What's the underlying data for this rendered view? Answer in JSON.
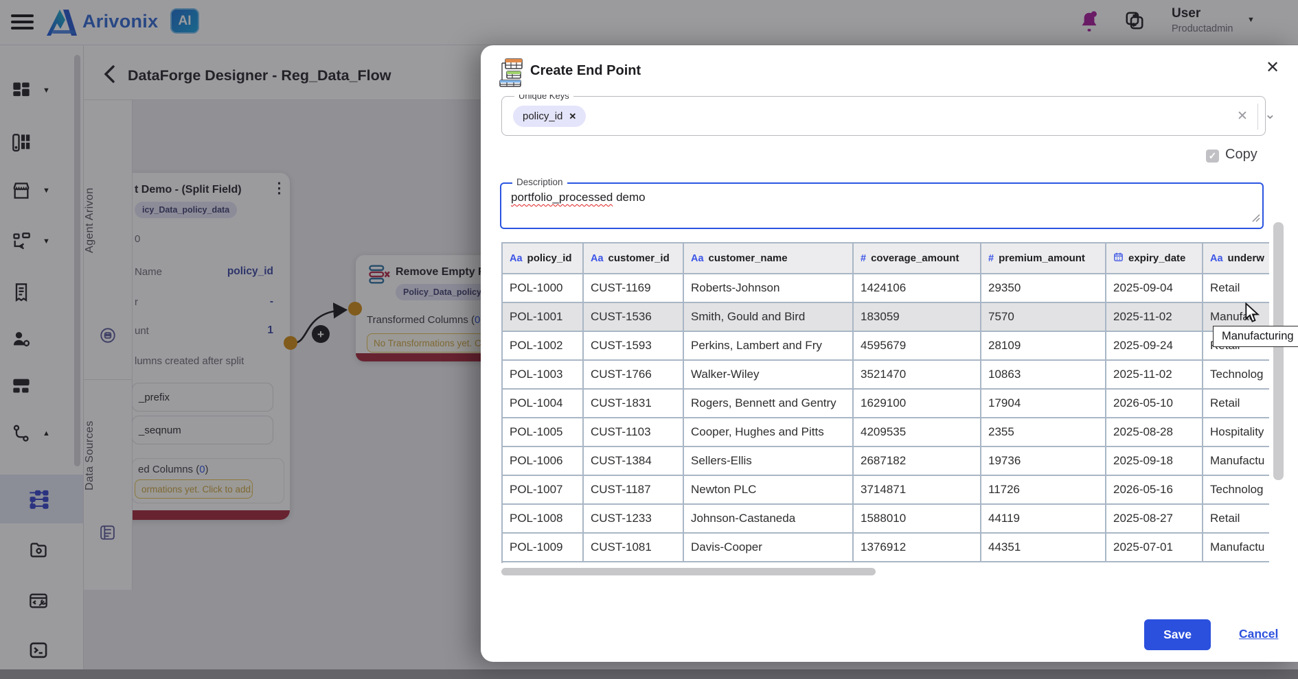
{
  "topbar": {
    "brand": "Arivonix",
    "badge": "AI",
    "user_name": "User",
    "user_role": "Productadmin"
  },
  "page_header": {
    "title": "DataForge Designer - Reg_Data_Flow"
  },
  "side_tabs": {
    "agent": "Agent Arivon",
    "sources": "Data Sources"
  },
  "canvas": {
    "left_node": {
      "title": "t Demo - (Split Field)",
      "menu_icon": "⋮",
      "chip": "icy_Data_policy_data",
      "fragment": "0",
      "fields": [
        {
          "label": "Name",
          "value": "policy_id"
        },
        {
          "label": "r",
          "value": "-"
        },
        {
          "label": "unt",
          "value": "1"
        }
      ],
      "note": "lumns created after split",
      "inputs": [
        "_prefix",
        "_seqnum"
      ],
      "columns_label": "ed Columns (",
      "columns_count": "0",
      "columns_close": ")",
      "pill": "ormations yet. Click to add."
    },
    "mid_node": {
      "title": "Remove Empty Row",
      "chip": "Policy_Data_policy_da",
      "columns_label": "Transformed Columns (",
      "columns_count": "0",
      "columns_close": ")",
      "pill": "No Transformations yet. Cl",
      "plus_icon": "+"
    }
  },
  "modal": {
    "title": "Create End Point",
    "close_icon": "✕",
    "unique_keys": {
      "label": "Unique Keys",
      "chip": "policy_id",
      "chip_remove_icon": "✕",
      "clear_icon": "✕",
      "dropdown_icon": "⌄"
    },
    "copy_label": "Copy",
    "copy_check_icon": "✓",
    "description": {
      "label": "Description",
      "misspelled": "portfolio_processed",
      "rest": " demo"
    },
    "table": {
      "headers": [
        {
          "icon": "Aa",
          "label": "policy_id"
        },
        {
          "icon": "Aa",
          "label": "customer_id"
        },
        {
          "icon": "Aa",
          "label": "customer_name"
        },
        {
          "icon": "#",
          "label": "coverage_amount"
        },
        {
          "icon": "#",
          "label": "premium_amount"
        },
        {
          "icon": "calendar",
          "label": "expiry_date"
        },
        {
          "icon": "Aa",
          "label": "underw"
        }
      ],
      "hover_row": 1,
      "rows": [
        [
          "POL-1000",
          "CUST-1169",
          "Roberts-Johnson",
          "1424106",
          "29350",
          "2025-09-04",
          "Retail"
        ],
        [
          "POL-1001",
          "CUST-1536",
          "Smith, Gould and Bird",
          "183059",
          "7570",
          "2025-11-02",
          "Manufac"
        ],
        [
          "POL-1002",
          "CUST-1593",
          "Perkins, Lambert and Fry",
          "4595679",
          "28109",
          "2025-09-24",
          "Retail"
        ],
        [
          "POL-1003",
          "CUST-1766",
          "Walker-Wiley",
          "3521470",
          "10863",
          "2025-11-02",
          "Technolog"
        ],
        [
          "POL-1004",
          "CUST-1831",
          "Rogers, Bennett and Gentry",
          "1629100",
          "17904",
          "2026-05-10",
          "Retail"
        ],
        [
          "POL-1005",
          "CUST-1103",
          "Cooper, Hughes and Pitts",
          "4209535",
          "2355",
          "2025-08-28",
          "Hospitality"
        ],
        [
          "POL-1006",
          "CUST-1384",
          "Sellers-Ellis",
          "2687182",
          "19736",
          "2025-09-18",
          "Manufactu"
        ],
        [
          "POL-1007",
          "CUST-1187",
          "Newton PLC",
          "3714871",
          "11726",
          "2026-05-16",
          "Technolog"
        ],
        [
          "POL-1008",
          "CUST-1233",
          "Johnson-Castaneda",
          "1588010",
          "44119",
          "2025-08-27",
          "Retail"
        ],
        [
          "POL-1009",
          "CUST-1081",
          "Davis-Cooper",
          "1376912",
          "44351",
          "2025-07-01",
          "Manufactu"
        ]
      ]
    },
    "tooltip": "Manufacturing",
    "save_label": "Save",
    "cancel_label": "Cancel"
  },
  "colors": {
    "accent_blue": "#2b50dd",
    "header_icon_blue": "#3c55e6",
    "chip_bg": "#e3e3f6",
    "warning_text": "#cda43e",
    "node_bar_red": "#a32638",
    "bell_magenta": "#a8189a",
    "port_orange": "#d08a12"
  }
}
